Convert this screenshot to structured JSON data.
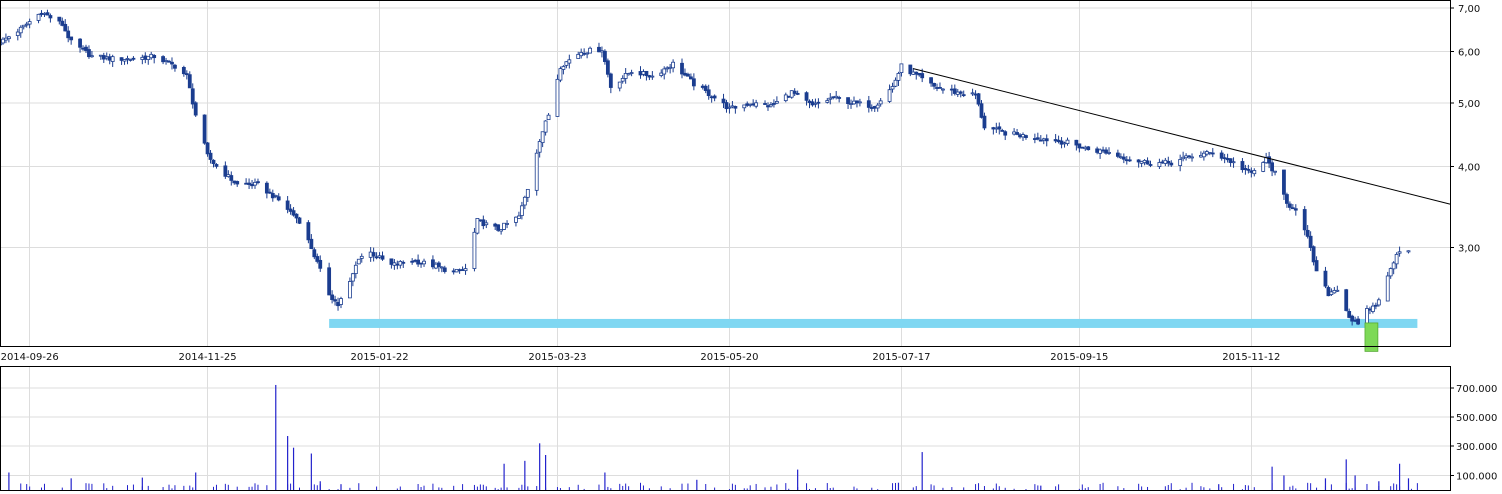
{
  "colors": {
    "candle": "#1b3d8f",
    "volume": "#2222cc",
    "support_band": "#7fd7f2",
    "highlight_bar": "#7ed957",
    "trendline": "#000000",
    "grid": "#dddddd"
  },
  "chart_data": [
    {
      "type": "candlestick",
      "title": "",
      "xlabel": "",
      "ylabel": "",
      "y_scale": "log",
      "ylim": [
        2.12,
        7.2
      ],
      "y_ticks": [
        {
          "value": 7,
          "label": "7,00"
        },
        {
          "value": 6,
          "label": "6,00"
        },
        {
          "value": 5,
          "label": "5,00"
        },
        {
          "value": 4,
          "label": "4,00"
        },
        {
          "value": 3,
          "label": "3,00"
        }
      ],
      "x_range": [
        "2014-09-16",
        "2016-01-18"
      ],
      "x_ticks": [
        "2014-09-26",
        "2014-11-25",
        "2015-01-22",
        "2015-03-23",
        "2015-05-20",
        "2015-07-17",
        "2015-09-15",
        "2015-11-12"
      ],
      "grid": true,
      "close_path": [
        [
          "2014-09-16",
          6.2
        ],
        [
          "2014-09-23",
          6.5
        ],
        [
          "2014-09-30",
          6.9
        ],
        [
          "2014-10-07",
          6.6
        ],
        [
          "2014-10-10",
          6.2
        ],
        [
          "2014-10-17",
          5.9
        ],
        [
          "2014-10-24",
          5.85
        ],
        [
          "2014-10-31",
          5.85
        ],
        [
          "2014-11-07",
          5.9
        ],
        [
          "2014-11-14",
          5.7
        ],
        [
          "2014-11-18",
          5.5
        ],
        [
          "2014-11-21",
          4.8
        ],
        [
          "2014-11-25",
          4.15
        ],
        [
          "2014-11-28",
          4.0
        ],
        [
          "2014-12-05",
          3.75
        ],
        [
          "2014-12-12",
          3.75
        ],
        [
          "2014-12-19",
          3.55
        ],
        [
          "2014-12-26",
          3.3
        ],
        [
          "2014-12-30",
          3.0
        ],
        [
          "2015-01-05",
          2.55
        ],
        [
          "2015-01-08",
          2.45
        ],
        [
          "2015-01-12",
          2.65
        ],
        [
          "2015-01-15",
          2.9
        ],
        [
          "2015-01-19",
          2.95
        ],
        [
          "2015-01-26",
          2.82
        ],
        [
          "2015-02-02",
          2.87
        ],
        [
          "2015-02-09",
          2.82
        ],
        [
          "2015-02-16",
          2.75
        ],
        [
          "2015-02-20",
          2.78
        ],
        [
          "2015-02-24",
          3.3
        ],
        [
          "2015-03-03",
          3.2
        ],
        [
          "2015-03-10",
          3.35
        ],
        [
          "2015-03-13",
          3.7
        ],
        [
          "2015-03-17",
          4.4
        ],
        [
          "2015-03-20",
          4.8
        ],
        [
          "2015-03-24",
          5.7
        ],
        [
          "2015-03-31",
          6.0
        ],
        [
          "2015-04-07",
          6.05
        ],
        [
          "2015-04-10",
          5.3
        ],
        [
          "2015-04-17",
          5.6
        ],
        [
          "2015-04-24",
          5.5
        ],
        [
          "2015-05-01",
          5.75
        ],
        [
          "2015-05-08",
          5.35
        ],
        [
          "2015-05-15",
          5.1
        ],
        [
          "2015-05-20",
          4.9
        ],
        [
          "2015-05-27",
          5.0
        ],
        [
          "2015-06-03",
          4.95
        ],
        [
          "2015-06-10",
          5.2
        ],
        [
          "2015-06-17",
          4.95
        ],
        [
          "2015-06-24",
          5.1
        ],
        [
          "2015-07-01",
          5.0
        ],
        [
          "2015-07-08",
          4.95
        ],
        [
          "2015-07-14",
          5.3
        ],
        [
          "2015-07-17",
          5.7
        ],
        [
          "2015-07-21",
          5.55
        ],
        [
          "2015-07-28",
          5.3
        ],
        [
          "2015-08-04",
          5.2
        ],
        [
          "2015-08-11",
          5.15
        ],
        [
          "2015-08-14",
          4.6
        ],
        [
          "2015-08-21",
          4.5
        ],
        [
          "2015-08-28",
          4.45
        ],
        [
          "2015-09-04",
          4.4
        ],
        [
          "2015-09-11",
          4.35
        ],
        [
          "2015-09-18",
          4.25
        ],
        [
          "2015-09-25",
          4.2
        ],
        [
          "2015-10-02",
          4.1
        ],
        [
          "2015-10-09",
          4.05
        ],
        [
          "2015-10-16",
          4.05
        ],
        [
          "2015-10-23",
          4.15
        ],
        [
          "2015-10-30",
          4.2
        ],
        [
          "2015-11-06",
          4.05
        ],
        [
          "2015-11-12",
          3.9
        ],
        [
          "2015-11-17",
          4.1
        ],
        [
          "2015-11-20",
          3.9
        ],
        [
          "2015-11-24",
          3.5
        ],
        [
          "2015-11-27",
          3.45
        ],
        [
          "2015-12-01",
          3.1
        ],
        [
          "2015-12-04",
          2.75
        ],
        [
          "2015-12-08",
          2.55
        ],
        [
          "2015-12-11",
          2.6
        ],
        [
          "2015-12-15",
          2.35
        ],
        [
          "2015-12-18",
          2.28
        ],
        [
          "2015-12-21",
          2.4
        ],
        [
          "2015-12-24",
          2.45
        ],
        [
          "2015-12-28",
          2.7
        ],
        [
          "2015-12-31",
          2.95
        ],
        [
          "2016-01-05",
          3.0
        ]
      ],
      "trendline": [
        [
          "2015-07-21",
          5.65
        ],
        [
          "2016-01-18",
          3.5
        ]
      ],
      "support_band": {
        "value": 2.3,
        "x_start": "2015-01-05",
        "x_end": "2016-01-07"
      },
      "highlight_bar": {
        "x_start": "2015-12-21",
        "x_end": "2015-12-24",
        "y_from": 2.08,
        "y_to": 2.3
      }
    },
    {
      "type": "bar",
      "title": "",
      "xlabel": "",
      "ylabel": "",
      "ylim": [
        0,
        850000
      ],
      "y_ticks": [
        {
          "value": 700000,
          "label": "700.000"
        },
        {
          "value": 500000,
          "label": "500.000"
        },
        {
          "value": 300000,
          "label": "300.000"
        },
        {
          "value": 100000,
          "label": "100.000"
        }
      ],
      "grid": true,
      "bars": [
        [
          "2014-09-19",
          120000
        ],
        [
          "2014-10-10",
          80000
        ],
        [
          "2014-11-03",
          85000
        ],
        [
          "2014-11-21",
          120000
        ],
        [
          "2014-12-18",
          720000
        ],
        [
          "2014-12-22",
          370000
        ],
        [
          "2014-12-24",
          290000
        ],
        [
          "2014-12-30",
          250000
        ],
        [
          "2015-01-02",
          60000
        ],
        [
          "2015-01-09",
          40000
        ],
        [
          "2015-03-05",
          180000
        ],
        [
          "2015-03-12",
          200000
        ],
        [
          "2015-03-17",
          320000
        ],
        [
          "2015-03-19",
          240000
        ],
        [
          "2015-04-08",
          120000
        ],
        [
          "2015-05-09",
          70000
        ],
        [
          "2015-06-12",
          140000
        ],
        [
          "2015-07-16",
          50000
        ],
        [
          "2015-07-24",
          260000
        ],
        [
          "2015-09-02",
          30000
        ],
        [
          "2015-11-01",
          40000
        ],
        [
          "2015-11-19",
          160000
        ],
        [
          "2015-11-23",
          100000
        ],
        [
          "2015-12-07",
          80000
        ],
        [
          "2015-12-14",
          210000
        ],
        [
          "2015-12-17",
          100000
        ],
        [
          "2015-12-25",
          60000
        ],
        [
          "2016-01-01",
          180000
        ],
        [
          "2016-01-04",
          80000
        ]
      ]
    }
  ]
}
